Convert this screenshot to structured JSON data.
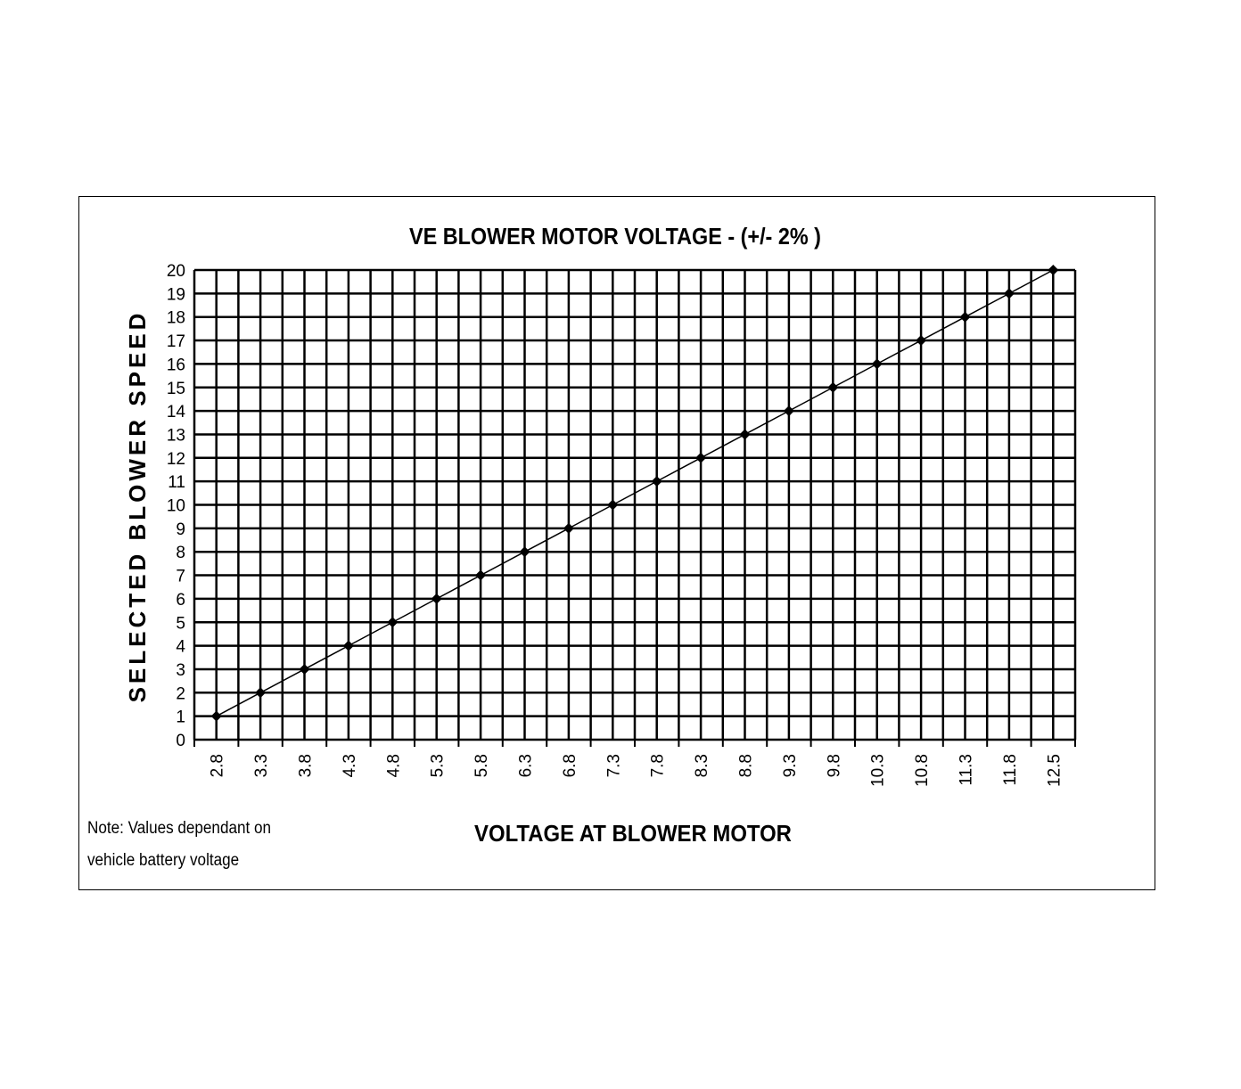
{
  "chart_data": {
    "type": "line",
    "title": "VE BLOWER MOTOR VOLTAGE - (+/- 2% )",
    "xlabel": "VOLTAGE AT BLOWER MOTOR",
    "ylabel": "SELECTED BLOWER SPEED",
    "categories": [
      "2.8",
      "3.3",
      "3.8",
      "4.3",
      "4.8",
      "5.3",
      "5.8",
      "6.3",
      "6.8",
      "7.3",
      "7.8",
      "8.3",
      "8.8",
      "9.3",
      "9.8",
      "10.3",
      "10.8",
      "11.3",
      "11.8",
      "12.5"
    ],
    "values": [
      1,
      2,
      3,
      4,
      5,
      6,
      7,
      8,
      9,
      10,
      11,
      12,
      13,
      14,
      15,
      16,
      17,
      18,
      19,
      20
    ],
    "ylim": [
      0,
      20
    ],
    "yticks": [
      "0",
      "1",
      "2",
      "3",
      "4",
      "5",
      "6",
      "7",
      "8",
      "9",
      "10",
      "11",
      "12",
      "13",
      "14",
      "15",
      "16",
      "17",
      "18",
      "19",
      "20"
    ],
    "grid": true,
    "line_color": "#000000",
    "marker": "diamond"
  },
  "note": {
    "line1": "Note: Values dependant on",
    "line2": "vehicle battery voltage"
  }
}
